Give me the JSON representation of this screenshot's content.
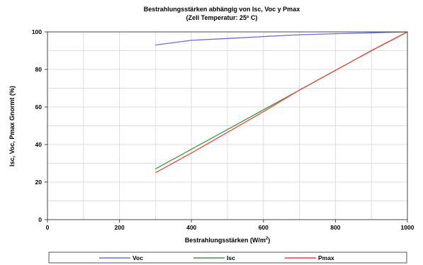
{
  "chart_data": {
    "type": "line",
    "title": "Bestrahlungsstärken abhängig von Isc, Voc y Pmax",
    "subtitle": "(Zell Temperatur: 25º C)",
    "xlabel_main": "Bestrahlungsstärken (W/m",
    "xlabel_sup": "2",
    "xlabel_end": ")",
    "ylabel": "Isc, Voc, Pmax Gnormt (%)",
    "xlim": [
      0,
      1000
    ],
    "ylim": [
      0,
      100
    ],
    "x_ticks": [
      "0",
      "200",
      "400",
      "600",
      "800",
      "1000"
    ],
    "y_ticks": [
      "0",
      "20",
      "40",
      "60",
      "80",
      "100"
    ],
    "grid": true,
    "legend_position": "bottom",
    "series": [
      {
        "name": "Voc",
        "color": "#6b6bdc",
        "x": [
          300,
          400,
          500,
          600,
          700,
          800,
          900,
          1000
        ],
        "y": [
          93,
          95.5,
          96.5,
          97.5,
          98.5,
          99,
          99.5,
          100
        ]
      },
      {
        "name": "Isc",
        "color": "#3a9a3a",
        "x": [
          300,
          400,
          500,
          600,
          700,
          800,
          900,
          1000
        ],
        "y": [
          27,
          37.5,
          48,
          58.5,
          69,
          79.5,
          90,
          100
        ]
      },
      {
        "name": "Pmax",
        "color": "#e8473a",
        "x": [
          300,
          400,
          500,
          600,
          700,
          800,
          900,
          1000
        ],
        "y": [
          25,
          35.5,
          46.5,
          57.5,
          69,
          79.5,
          90,
          100
        ]
      }
    ]
  }
}
